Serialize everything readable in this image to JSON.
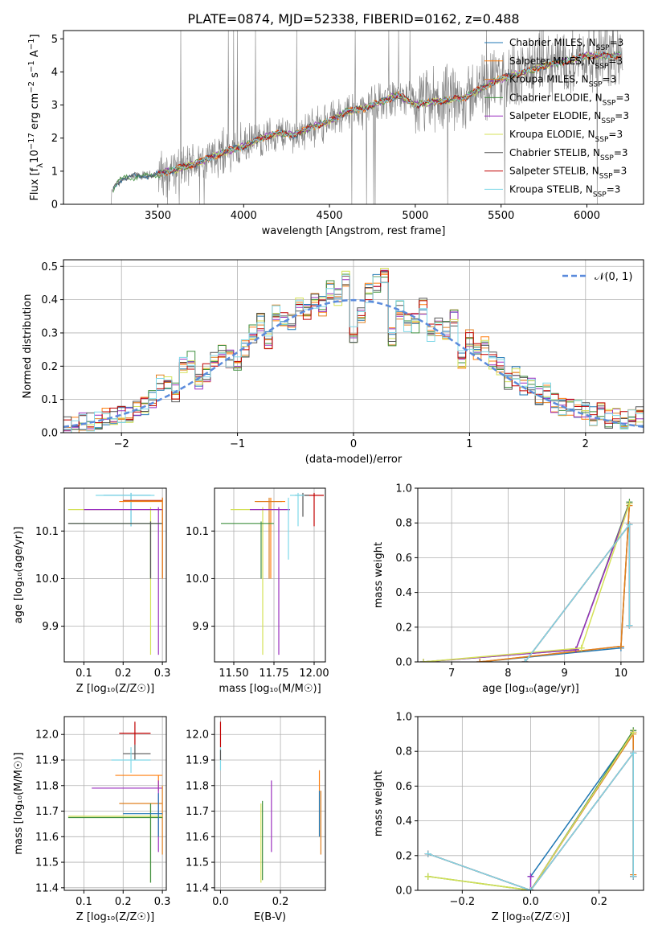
{
  "figure": {
    "title": "PLATE=0874, MJD=52338, FIBERID=0162, z=0.488"
  },
  "colors": {
    "Chabrier MILES": "#1f77b4",
    "Salpeter MILES": "#ff7f0e",
    "Kroupa MILES": "#e08020",
    "Chabrier ELODIE": "#3f8f3f",
    "Salpeter ELODIE": "#9a2fbf",
    "Kroupa ELODIE": "#d4e157",
    "Chabrier STELIB": "#555555",
    "Salpeter STELIB": "#c00000",
    "Kroupa STELIB": "#7fd8e8",
    "normal_curve": "#5b8bdc",
    "grid": "#b0b0b0",
    "data_spectrum": "#808080"
  },
  "chart_data": [
    {
      "id": "spectrum",
      "type": "line",
      "xlabel": "wavelength [Angstrom, rest frame]",
      "ylabel_parts": [
        "Flux [f",
        "λ",
        "10",
        "−17",
        " erg cm",
        "−2",
        " s",
        "−1",
        " A",
        "−1",
        "]"
      ],
      "xlim": [
        2950,
        6330
      ],
      "ylim": [
        0,
        5.25
      ],
      "xticks": [
        3500,
        4000,
        4500,
        5000,
        5500,
        6000
      ],
      "yticks": [
        0,
        1,
        2,
        3,
        4,
        5
      ],
      "grid": false,
      "legend_position": "right",
      "legend": [
        {
          "base": "Chabrier MILES, N",
          "sub": "SSP",
          "tail": "=3",
          "color": "#1f77b4"
        },
        {
          "base": "Salpeter MILES, N",
          "sub": "SSP",
          "tail": "=3",
          "color": "#ff7f0e"
        },
        {
          "base": "Kroupa MILES, N",
          "sub": "SSP",
          "tail": "=3",
          "color": "#e08020"
        },
        {
          "base": "Chabrier ELODIE, N",
          "sub": "SSP",
          "tail": "=3",
          "color": "#3f8f3f"
        },
        {
          "base": "Salpeter ELODIE, N",
          "sub": "SSP",
          "tail": "=3",
          "color": "#9a2fbf"
        },
        {
          "base": "Kroupa ELODIE, N",
          "sub": "SSP",
          "tail": "=3",
          "color": "#d4e157"
        },
        {
          "base": "Chabrier STELIB, N",
          "sub": "SSP",
          "tail": "=3",
          "color": "#555555"
        },
        {
          "base": "Salpeter STELIB, N",
          "sub": "SSP",
          "tail": "=3",
          "color": "#c00000"
        },
        {
          "base": "Kroupa STELIB, N",
          "sub": "SSP",
          "tail": "=3",
          "color": "#7fd8e8"
        }
      ],
      "continuum": {
        "wavelength": [
          3200,
          3250,
          3300,
          3400,
          3500,
          3600,
          3700,
          3800,
          3900,
          4000,
          4100,
          4200,
          4300,
          4400,
          4500,
          4600,
          4700,
          4800,
          4900,
          5000,
          5100,
          5200,
          5300,
          5400,
          5500,
          5600,
          5700,
          5800,
          5900,
          6000,
          6100,
          6200
        ],
        "flux": [
          0.0,
          0.55,
          0.8,
          0.85,
          0.9,
          1.05,
          1.2,
          1.4,
          1.6,
          1.75,
          2.0,
          2.15,
          2.1,
          2.35,
          2.5,
          2.8,
          2.9,
          3.1,
          3.3,
          3.0,
          3.1,
          3.15,
          3.25,
          3.55,
          3.8,
          3.95,
          4.1,
          4.25,
          4.35,
          4.5,
          4.5,
          4.5
        ]
      }
    },
    {
      "id": "residuals",
      "type": "histogram",
      "xlabel": "(data-model)/error",
      "ylabel": "Normed distribution",
      "xlim": [
        -2.5,
        2.5
      ],
      "ylim": [
        0,
        0.52
      ],
      "xticks": [
        -2,
        -1,
        0,
        1,
        2
      ],
      "yticks": [
        0.0,
        0.1,
        0.2,
        0.3,
        0.4,
        0.5
      ],
      "grid": true,
      "legend_position": "top-right",
      "legend_label": "𝒩(0, 1)",
      "bin_width": 0.1,
      "curve": {
        "name": "𝒩(0, 1)",
        "mean": 0,
        "sigma": 1
      },
      "series_envelope": [
        0.02,
        0.025,
        0.03,
        0.03,
        0.04,
        0.045,
        0.05,
        0.05,
        0.06,
        0.07,
        0.08,
        0.1,
        0.15,
        0.14,
        0.12,
        0.2,
        0.22,
        0.15,
        0.18,
        0.22,
        0.24,
        0.22,
        0.21,
        0.25,
        0.3,
        0.33,
        0.28,
        0.36,
        0.35,
        0.34,
        0.38,
        0.36,
        0.4,
        0.38,
        0.43,
        0.41,
        0.46,
        0.3,
        0.36,
        0.42,
        0.45,
        0.48,
        0.29,
        0.37,
        0.33,
        0.33,
        0.38,
        0.3,
        0.32,
        0.31,
        0.34,
        0.22,
        0.28,
        0.25,
        0.26,
        0.22,
        0.2,
        0.15,
        0.17,
        0.14,
        0.14,
        0.11,
        0.12,
        0.09,
        0.08,
        0.08,
        0.07,
        0.06,
        0.05,
        0.06,
        0.04,
        0.05,
        0.04,
        0.045,
        0.05
      ]
    },
    {
      "id": "age_vs_Z",
      "type": "scatter",
      "xlabel": "Z [log₁₀(Z/Z☉)]",
      "ylabel": "age  [log₁₀(age/yr)]",
      "xlim": [
        0.05,
        0.31
      ],
      "ylim": [
        9.825,
        10.19
      ],
      "xticks": [
        0.1,
        0.2,
        0.3
      ],
      "yticks": [
        9.9,
        10.0,
        10.1
      ],
      "grid": true,
      "points": [
        {
          "model": "Chabrier MILES",
          "x": 0.22,
          "y": 10.175,
          "xerr": [
            0.15,
            0.27
          ],
          "yerr": [
            10.11,
            10.18
          ]
        },
        {
          "model": "Kroupa STELIB",
          "x": 0.22,
          "y": 10.175,
          "xerr": [
            0.13,
            0.28
          ],
          "yerr": [
            10.11,
            10.18
          ]
        },
        {
          "model": "Salpeter STELIB",
          "x": 0.3,
          "y": 10.164,
          "xerr": [
            0.2,
            0.3
          ],
          "yerr": [
            10.0,
            10.17
          ]
        },
        {
          "model": "Salpeter MILES",
          "x": 0.3,
          "y": 10.162,
          "xerr": [
            0.19,
            0.3
          ],
          "yerr": [
            10.0,
            10.17
          ]
        },
        {
          "model": "Kroupa ELODIE",
          "x": 0.27,
          "y": 10.145,
          "xerr": [
            0.06,
            0.3
          ],
          "yerr": [
            9.84,
            10.15
          ]
        },
        {
          "model": "Salpeter ELODIE",
          "x": 0.29,
          "y": 10.145,
          "xerr": [
            0.1,
            0.3
          ],
          "yerr": [
            9.84,
            10.15
          ]
        },
        {
          "model": "Chabrier ELODIE",
          "x": 0.27,
          "y": 10.116,
          "xerr": [
            0.06,
            0.3
          ],
          "yerr": [
            10.0,
            10.12
          ]
        },
        {
          "model": "Chabrier STELIB",
          "x": 0.27,
          "y": 10.116,
          "xerr": [
            0.06,
            0.3
          ],
          "yerr": [
            10.0,
            10.12
          ]
        },
        {
          "model": "Kroupa MILES",
          "x": 0.3,
          "y": 10.163,
          "xerr": [
            0.2,
            0.3
          ],
          "yerr": [
            10.0,
            10.17
          ]
        }
      ]
    },
    {
      "id": "age_vs_mass",
      "type": "scatter",
      "xlabel": "mass [log₁₀(M/M☉)]",
      "ylabel": "",
      "xlim": [
        11.38,
        12.07
      ],
      "ylim": [
        9.825,
        10.19
      ],
      "xticks": [
        11.5,
        11.75,
        12.0
      ],
      "yticks": [
        9.9,
        10.0,
        10.1
      ],
      "grid": true,
      "points": [
        {
          "model": "Salpeter STELIB",
          "x": 12.0,
          "y": 10.175,
          "xerr": [
            11.93,
            12.06
          ],
          "yerr": [
            10.11,
            10.18
          ]
        },
        {
          "model": "Chabrier STELIB",
          "x": 11.93,
          "y": 10.175,
          "xerr": [
            11.88,
            11.97
          ],
          "yerr": [
            10.13,
            10.18
          ]
        },
        {
          "model": "Kroupa STELIB",
          "x": 11.9,
          "y": 10.175,
          "xerr": [
            11.85,
            11.94
          ],
          "yerr": [
            10.11,
            10.18
          ]
        },
        {
          "model": "Salpeter MILES",
          "x": 11.73,
          "y": 10.162,
          "xerr": [
            11.64,
            11.82
          ],
          "yerr": [
            10.0,
            10.17
          ]
        },
        {
          "model": "Kroupa MILES",
          "x": 11.72,
          "y": 10.162,
          "xerr": [
            11.63,
            11.8
          ],
          "yerr": [
            10.0,
            10.17
          ]
        },
        {
          "model": "Kroupa ELODIE",
          "x": 11.68,
          "y": 10.145,
          "xerr": [
            11.48,
            11.85
          ],
          "yerr": [
            9.84,
            10.15
          ]
        },
        {
          "model": "Salpeter ELODIE",
          "x": 11.78,
          "y": 10.145,
          "xerr": [
            11.6,
            11.85
          ],
          "yerr": [
            9.84,
            10.15
          ]
        },
        {
          "model": "Chabrier ELODIE",
          "x": 11.67,
          "y": 10.116,
          "xerr": [
            11.42,
            11.75
          ],
          "yerr": [
            10.0,
            10.12
          ]
        },
        {
          "model": "Kroupa STELIB",
          "x": 11.84,
          "y": 10.164,
          "xerr": [
            11.84,
            11.84
          ],
          "yerr": [
            10.04,
            10.17
          ]
        }
      ]
    },
    {
      "id": "mass_weight_vs_age",
      "type": "line",
      "xlabel": "age  [log₁₀(age/yr)]",
      "ylabel": "mass weight",
      "xlim": [
        6.4,
        10.4
      ],
      "ylim": [
        0,
        1.0
      ],
      "xticks": [
        7,
        8,
        9,
        10
      ],
      "yticks": [
        0.0,
        0.2,
        0.4,
        0.6,
        0.8,
        1.0
      ],
      "grid": true,
      "series": [
        {
          "name": "Chabrier MILES",
          "x": [
            7.5,
            10.0,
            10.15
          ],
          "y": [
            0.0,
            0.08,
            0.91
          ]
        },
        {
          "name": "Salpeter MILES",
          "x": [
            7.5,
            10.0,
            10.15
          ],
          "y": [
            0.0,
            0.09,
            0.91
          ]
        },
        {
          "name": "Kroupa MILES",
          "x": [
            7.5,
            10.0,
            10.15
          ],
          "y": [
            0.0,
            0.09,
            0.9
          ]
        },
        {
          "name": "Chabrier ELODIE",
          "x": [
            6.5,
            9.2,
            10.15
          ],
          "y": [
            0.0,
            0.07,
            0.92
          ]
        },
        {
          "name": "Salpeter ELODIE",
          "x": [
            6.5,
            9.2,
            10.15
          ],
          "y": [
            0.0,
            0.07,
            0.91
          ]
        },
        {
          "name": "Kroupa ELODIE",
          "x": [
            6.5,
            9.3,
            10.15
          ],
          "y": [
            0.0,
            0.08,
            0.91
          ]
        },
        {
          "name": "Chabrier STELIB",
          "x": [
            8.3,
            10.15,
            10.15
          ],
          "y": [
            0.0,
            0.79,
            0.21
          ]
        },
        {
          "name": "Salpeter STELIB",
          "x": [
            8.3,
            10.15,
            10.15
          ],
          "y": [
            0.0,
            0.79,
            0.21
          ]
        },
        {
          "name": "Kroupa STELIB",
          "x": [
            8.3,
            10.15,
            10.15
          ],
          "y": [
            0.0,
            0.79,
            0.21
          ]
        }
      ]
    },
    {
      "id": "mass_vs_Z",
      "type": "scatter",
      "xlabel": "Z [log₁₀(Z/Z☉)]",
      "ylabel": "mass [log₁₀(M/M☉)]",
      "xlim": [
        0.05,
        0.31
      ],
      "ylim": [
        11.39,
        12.07
      ],
      "xticks": [
        0.1,
        0.2,
        0.3
      ],
      "yticks": [
        11.4,
        11.5,
        11.6,
        11.7,
        11.8,
        11.9,
        12.0
      ],
      "grid": true,
      "points": [
        {
          "model": "Salpeter STELIB",
          "x": 0.23,
          "y": 12.005,
          "xerr": [
            0.19,
            0.27
          ],
          "yerr": [
            11.96,
            12.05
          ]
        },
        {
          "model": "Chabrier STELIB",
          "x": 0.23,
          "y": 11.925,
          "xerr": [
            0.2,
            0.27
          ],
          "yerr": [
            11.9,
            11.96
          ]
        },
        {
          "model": "Kroupa STELIB",
          "x": 0.22,
          "y": 11.9,
          "xerr": [
            0.17,
            0.27
          ],
          "yerr": [
            11.85,
            11.95
          ]
        },
        {
          "model": "Salpeter MILES",
          "x": 0.29,
          "y": 11.84,
          "xerr": [
            0.18,
            0.3
          ],
          "yerr": [
            11.78,
            11.84
          ]
        },
        {
          "model": "Salpeter ELODIE",
          "x": 0.29,
          "y": 11.79,
          "xerr": [
            0.12,
            0.3
          ],
          "yerr": [
            11.54,
            11.82
          ]
        },
        {
          "model": "Kroupa MILES",
          "x": 0.3,
          "y": 11.73,
          "xerr": [
            0.19,
            0.3
          ],
          "yerr": [
            11.53,
            11.8
          ]
        },
        {
          "model": "Kroupa ELODIE",
          "x": 0.27,
          "y": 11.68,
          "xerr": [
            0.06,
            0.3
          ],
          "yerr": [
            11.42,
            11.73
          ]
        },
        {
          "model": "Chabrier ELODIE",
          "x": 0.27,
          "y": 11.675,
          "xerr": [
            0.06,
            0.3
          ],
          "yerr": [
            11.42,
            11.73
          ]
        },
        {
          "model": "Chabrier MILES",
          "x": 0.29,
          "y": 11.69,
          "xerr": [
            0.2,
            0.3
          ],
          "yerr": [
            11.6,
            11.77
          ]
        }
      ]
    },
    {
      "id": "mass_vs_ebv",
      "type": "scatter",
      "xlabel": "E(B-V)",
      "ylabel": "",
      "xlim": [
        -0.02,
        0.35
      ],
      "ylim": [
        11.39,
        12.07
      ],
      "xticks": [
        0.0,
        0.2
      ],
      "yticks": [
        11.4,
        11.5,
        11.6,
        11.7,
        11.8,
        11.9,
        12.0
      ],
      "grid": true,
      "points": [
        {
          "model": "Salpeter STELIB",
          "x": 0.0,
          "y": 12.0,
          "yerr": [
            11.95,
            12.05
          ]
        },
        {
          "model": "Kroupa STELIB",
          "x": 0.0,
          "y": 11.9,
          "yerr": [
            11.86,
            11.95
          ]
        },
        {
          "model": "Chabrier STELIB",
          "x": 0.0,
          "y": 11.92,
          "yerr": [
            11.9,
            11.94
          ]
        },
        {
          "model": "Chabrier ELODIE",
          "x": 0.14,
          "y": 11.68,
          "yerr": [
            11.43,
            11.74
          ]
        },
        {
          "model": "Kroupa ELODIE",
          "x": 0.135,
          "y": 11.68,
          "yerr": [
            11.42,
            11.73
          ]
        },
        {
          "model": "Salpeter ELODIE",
          "x": 0.17,
          "y": 11.7,
          "yerr": [
            11.54,
            11.82
          ]
        },
        {
          "model": "Salpeter MILES",
          "x": 0.33,
          "y": 11.73,
          "yerr": [
            11.6,
            11.86
          ]
        },
        {
          "model": "Kroupa MILES",
          "x": 0.335,
          "y": 11.7,
          "yerr": [
            11.53,
            11.78
          ]
        },
        {
          "model": "Chabrier MILES",
          "x": 0.33,
          "y": 11.72,
          "yerr": [
            11.6,
            11.78
          ]
        }
      ]
    },
    {
      "id": "mass_weight_vs_Z",
      "type": "line",
      "xlabel": "Z [log₁₀(Z/Z☉)]",
      "ylabel": "mass weight",
      "xlim": [
        -0.33,
        0.33
      ],
      "ylim": [
        0,
        1.0
      ],
      "xticks": [
        -0.2,
        0.0,
        0.2
      ],
      "yticks": [
        0.0,
        0.2,
        0.4,
        0.6,
        0.8,
        1.0
      ],
      "grid": true,
      "series": [
        {
          "name": "Chabrier MILES",
          "x": [
            0.0,
            0.3,
            0.3
          ],
          "y": [
            0.08,
            0.91,
            0.08
          ]
        },
        {
          "name": "Salpeter MILES",
          "x": [
            0.0,
            0.3,
            0.3
          ],
          "y": [
            0.0,
            0.91,
            0.09
          ]
        },
        {
          "name": "Kroupa MILES",
          "x": [
            0.0,
            0.3,
            0.3
          ],
          "y": [
            0.0,
            0.9,
            0.09
          ]
        },
        {
          "name": "Chabrier ELODIE",
          "x": [
            -0.3,
            0.0,
            0.3
          ],
          "y": [
            0.08,
            0.0,
            0.92
          ]
        },
        {
          "name": "Salpeter ELODIE",
          "x": [
            0.0,
            0.0,
            0.3
          ],
          "y": [
            0.08,
            0.0,
            0.91
          ]
        },
        {
          "name": "Kroupa ELODIE",
          "x": [
            -0.3,
            0.0,
            0.3
          ],
          "y": [
            0.08,
            0.0,
            0.91
          ]
        },
        {
          "name": "Chabrier STELIB",
          "x": [
            -0.3,
            0.0,
            0.3,
            0.3
          ],
          "y": [
            0.21,
            0.0,
            0.79,
            0.08
          ]
        },
        {
          "name": "Salpeter STELIB",
          "x": [
            -0.3,
            0.0,
            0.3,
            0.3
          ],
          "y": [
            0.21,
            0.0,
            0.79,
            0.08
          ]
        },
        {
          "name": "Kroupa STELIB",
          "x": [
            -0.3,
            0.0,
            0.3,
            0.3
          ],
          "y": [
            0.21,
            0.0,
            0.79,
            0.08
          ]
        }
      ]
    }
  ]
}
